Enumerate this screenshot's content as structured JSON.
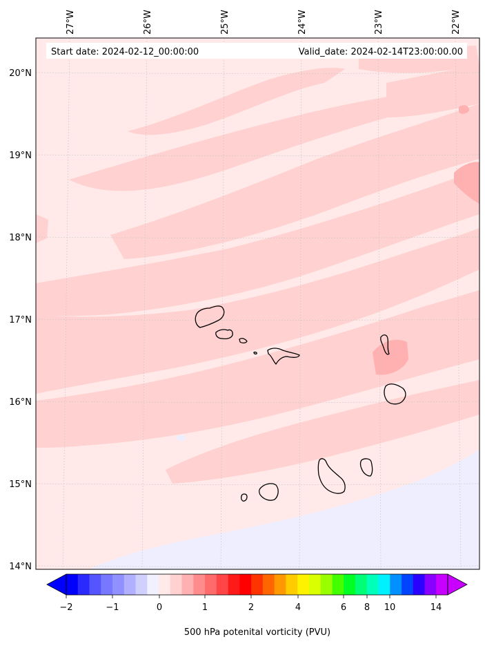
{
  "map": {
    "start_date_label": "Start date: 2024-02-12_00:00:00",
    "valid_date_label": "Valid_date: 2024-02-14T23:00:00.00",
    "lon_ticks": [
      "27°W",
      "26°W",
      "25°W",
      "24°W",
      "23°W",
      "22°W"
    ],
    "lat_ticks": [
      "20°N",
      "19°N",
      "18°N",
      "17°N",
      "16°N",
      "15°N",
      "14°N"
    ],
    "background_color": "#ffe9e9",
    "band_color": "#ffd1d1",
    "strong_color": "#ffb0b0",
    "negative_color": "#eeeeff",
    "coast_color": "#000000"
  },
  "colorbar": {
    "label": "500 hPa potenital vorticity (PVU)",
    "tick_labels": [
      "−2",
      "−1",
      "0",
      "1",
      "2",
      "4",
      "6",
      "8",
      "10",
      "14"
    ],
    "colors": [
      "#0000ff",
      "#2a2aff",
      "#5555ff",
      "#7777ff",
      "#9090ff",
      "#b0b0ff",
      "#d0d0ff",
      "#f0f0ff",
      "#ffe9e9",
      "#ffd1d1",
      "#ffb0b0",
      "#ff8c8c",
      "#ff6a6a",
      "#ff4545",
      "#ff1a1a",
      "#ff0000",
      "#ff3300",
      "#ff6600",
      "#ff9900",
      "#ffcc00",
      "#fff200",
      "#d9ff00",
      "#99ff00",
      "#44ff00",
      "#00ff22",
      "#00ff77",
      "#00ffbb",
      "#00f0ff",
      "#0090ff",
      "#0044ff",
      "#2a00ff",
      "#8800ff",
      "#c800ff"
    ]
  }
}
